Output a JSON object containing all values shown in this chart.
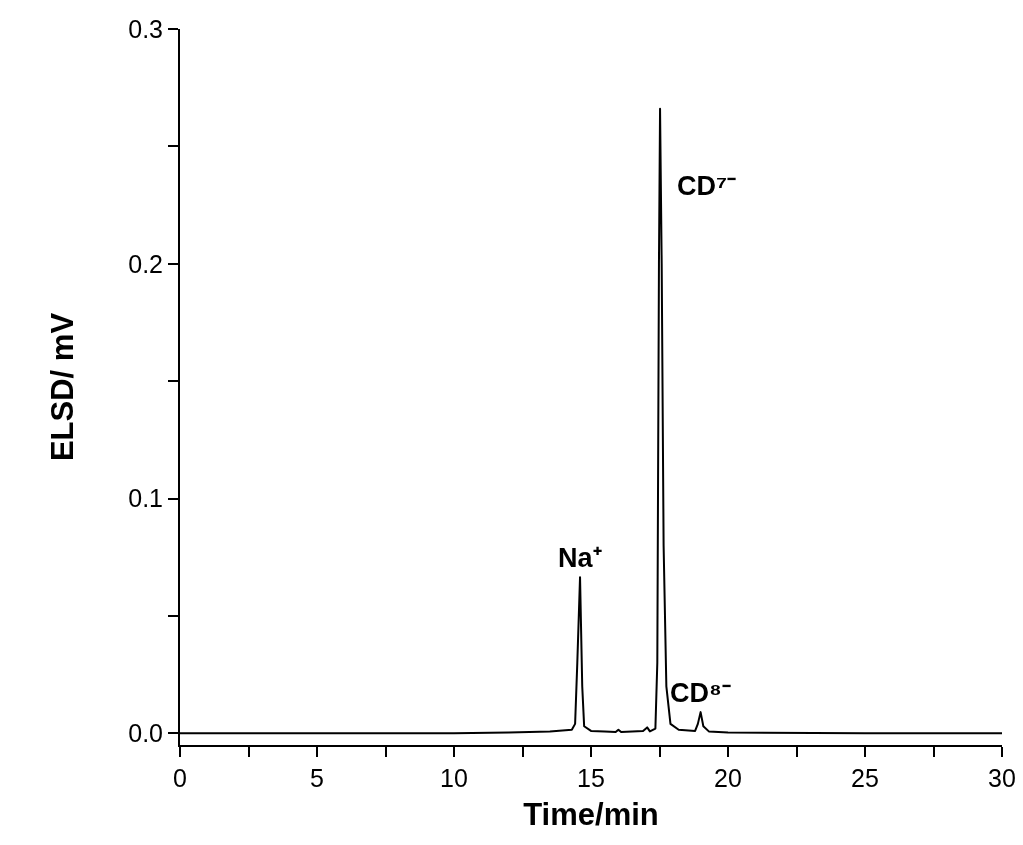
{
  "chart_data": {
    "type": "line",
    "xlabel": "Time/min",
    "ylabel": "ELSD/ mV",
    "series": [
      {
        "color": "#000000",
        "x": [
          0,
          5,
          10,
          12,
          13.5,
          14.3,
          14.42,
          14.5,
          14.6,
          14.68,
          14.75,
          15,
          15.5,
          15.9,
          16.0,
          16.1,
          16.9,
          17.05,
          17.15,
          17.35,
          17.42,
          17.48,
          17.52,
          17.58,
          17.65,
          17.75,
          17.9,
          18.2,
          18.8,
          18.9,
          19.0,
          19.1,
          19.3,
          20,
          25,
          30
        ],
        "values": [
          0,
          0,
          0,
          0.0003,
          0.0008,
          0.0015,
          0.004,
          0.03,
          0.0665,
          0.02,
          0.003,
          0.001,
          0.0008,
          0.0005,
          0.0015,
          0.0005,
          0.001,
          0.0025,
          0.0008,
          0.002,
          0.03,
          0.2,
          0.266,
          0.2,
          0.08,
          0.02,
          0.004,
          0.0015,
          0.001,
          0.004,
          0.009,
          0.003,
          0.0008,
          0.0003,
          0,
          0
        ]
      }
    ],
    "xlim": [
      0,
      30
    ],
    "ylim": [
      -0.005,
      0.3
    ],
    "xticks": [
      0,
      {
        "value": 2.5,
        "label": null
      },
      5,
      {
        "value": 7.5,
        "label": null
      },
      10,
      {
        "value": 12.5,
        "label": null
      },
      15,
      {
        "value": 17.5,
        "label": null
      },
      20,
      {
        "value": 22.5,
        "label": null
      },
      25,
      {
        "value": 27.5,
        "label": null
      },
      30
    ],
    "yticks": [
      {
        "value": 0,
        "label": "0.0"
      },
      {
        "value": 0.05,
        "label": null
      },
      {
        "value": 0.1,
        "label": "0.1"
      },
      {
        "value": 0.15,
        "label": null
      },
      {
        "value": 0.2,
        "label": "0.2"
      },
      {
        "value": 0.25,
        "label": null
      },
      {
        "value": 0.3,
        "label": "0.3"
      }
    ],
    "annotations": [
      {
        "text": "Na⁺",
        "x": 14.6,
        "y": 0.0665
      },
      {
        "text": "CD⁷⁻",
        "x": 17.55,
        "y": 0.233
      },
      {
        "text": "CD⁸⁻",
        "x": 19.0,
        "y": 0.009
      }
    ],
    "grid": false,
    "marker": "none",
    "line_style": "solid"
  }
}
